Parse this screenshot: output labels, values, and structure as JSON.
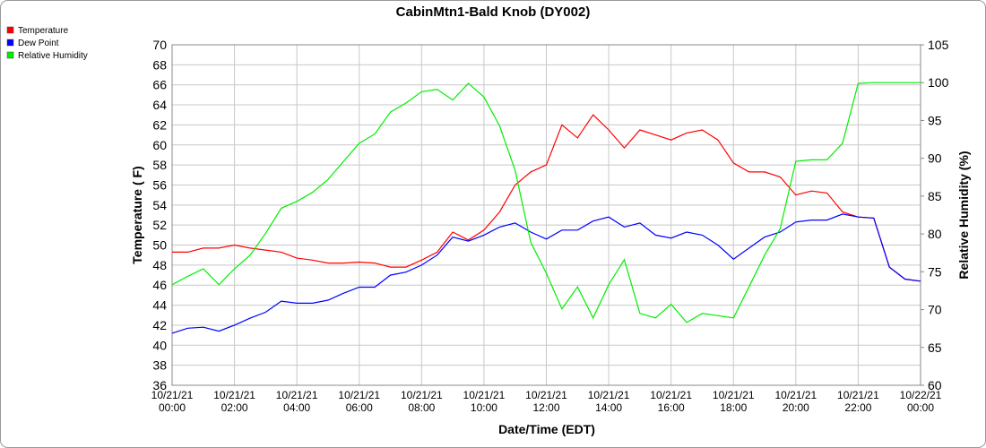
{
  "chart_data": {
    "type": "line",
    "title": "CabinMtn1-Bald Knob (DY002)",
    "x_label": "Date/Time (EDT)",
    "y_label": "Temperature ( F)",
    "y2_label": "Relative Humidity (%)",
    "x": [
      "10/21/21 00:00",
      "10/21/21 00:30",
      "10/21/21 01:00",
      "10/21/21 01:30",
      "10/21/21 02:00",
      "10/21/21 02:30",
      "10/21/21 03:00",
      "10/21/21 03:30",
      "10/21/21 04:00",
      "10/21/21 04:30",
      "10/21/21 05:00",
      "10/21/21 05:30",
      "10/21/21 06:00",
      "10/21/21 06:30",
      "10/21/21 07:00",
      "10/21/21 07:30",
      "10/21/21 08:00",
      "10/21/21 08:30",
      "10/21/21 09:00",
      "10/21/21 09:30",
      "10/21/21 10:00",
      "10/21/21 10:30",
      "10/21/21 11:00",
      "10/21/21 11:30",
      "10/21/21 12:00",
      "10/21/21 12:30",
      "10/21/21 13:00",
      "10/21/21 13:30",
      "10/21/21 14:00",
      "10/21/21 14:30",
      "10/21/21 15:00",
      "10/21/21 15:30",
      "10/21/21 16:00",
      "10/21/21 16:30",
      "10/21/21 17:00",
      "10/21/21 17:30",
      "10/21/21 18:00",
      "10/21/21 18:30",
      "10/21/21 19:00",
      "10/21/21 19:30",
      "10/21/21 20:00",
      "10/21/21 20:30",
      "10/21/21 21:00",
      "10/21/21 21:30",
      "10/21/21 22:00",
      "10/21/21 22:30",
      "10/21/21 23:00",
      "10/21/21 23:30",
      "10/22/21 00:00"
    ],
    "series": [
      {
        "name": "Temperature",
        "color": "#ff0000",
        "values": [
          49.3,
          49.3,
          49.7,
          49.7,
          50.0,
          49.7,
          49.5,
          49.3,
          48.7,
          48.5,
          48.2,
          48.2,
          48.3,
          48.2,
          47.8,
          47.8,
          48.5,
          49.3,
          51.3,
          50.5,
          51.5,
          53.3,
          56.0,
          57.3,
          58.0,
          62.0,
          60.7,
          63.0,
          61.5,
          59.7,
          61.5,
          61.0,
          60.5,
          61.2,
          61.5,
          60.5,
          58.2,
          57.3,
          57.3,
          56.8,
          55.0,
          55.4,
          55.2,
          53.3,
          52.8,
          52.7,
          47.8,
          46.6,
          46.4
        ]
      },
      {
        "name": "Dew Point",
        "color": "#0000ff",
        "values": [
          41.2,
          41.7,
          41.8,
          41.4,
          42.0,
          42.7,
          43.3,
          44.4,
          44.2,
          44.2,
          44.5,
          45.2,
          45.8,
          45.8,
          47.0,
          47.3,
          48.0,
          49.0,
          50.8,
          50.4,
          51.0,
          51.8,
          52.2,
          51.3,
          50.6,
          51.5,
          51.5,
          52.4,
          52.8,
          51.8,
          52.2,
          51.0,
          50.7,
          51.3,
          51.0,
          50.0,
          48.6,
          49.7,
          50.8,
          51.3,
          52.3,
          52.5,
          52.5,
          53.1,
          52.8,
          52.7,
          47.8,
          46.6,
          46.4
        ]
      },
      {
        "name": "Relative Humidity",
        "color": "#00ee00",
        "axis": "y2",
        "values": [
          73.3,
          74.4,
          75.4,
          73.3,
          75.4,
          77.2,
          80.1,
          83.4,
          84.3,
          85.5,
          87.2,
          89.6,
          92.0,
          93.2,
          96.1,
          97.3,
          98.8,
          99.1,
          97.7,
          99.9,
          98.1,
          94.3,
          88.4,
          78.9,
          74.8,
          70.1,
          73.0,
          68.9,
          73.3,
          76.6,
          69.5,
          68.9,
          70.7,
          68.3,
          69.5,
          69.2,
          68.9,
          73.0,
          77.2,
          80.7,
          89.6,
          89.8,
          89.8,
          92.0,
          99.9,
          100,
          100,
          100,
          100
        ]
      }
    ],
    "xlim": [
      "10/21/21 00:00",
      "10/22/21 00:00"
    ],
    "xticks": [
      "10/21/21 00:00",
      "10/21/21 02:00",
      "10/21/21 04:00",
      "10/21/21 06:00",
      "10/21/21 08:00",
      "10/21/21 10:00",
      "10/21/21 12:00",
      "10/21/21 14:00",
      "10/21/21 16:00",
      "10/21/21 18:00",
      "10/21/21 20:00",
      "10/21/21 22:00",
      "10/22/21 00:00"
    ],
    "ylim": [
      36,
      70
    ],
    "yticks": [
      36,
      38,
      40,
      42,
      44,
      46,
      48,
      50,
      52,
      54,
      56,
      58,
      60,
      62,
      64,
      66,
      68,
      70
    ],
    "y2lim": [
      60,
      105
    ],
    "y2ticks": [
      60,
      65,
      70,
      75,
      80,
      85,
      90,
      95,
      100,
      105
    ],
    "grid": true,
    "legend": "top-left"
  }
}
